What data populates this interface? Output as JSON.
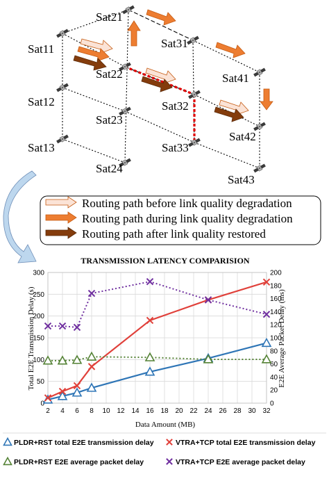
{
  "diagram": {
    "satellites": [
      {
        "id": "sat11",
        "label": "Sat11"
      },
      {
        "id": "sat12",
        "label": "Sat12"
      },
      {
        "id": "sat13",
        "label": "Sat13"
      },
      {
        "id": "sat21",
        "label": "Sat21"
      },
      {
        "id": "sat22",
        "label": "Sat22"
      },
      {
        "id": "sat23",
        "label": "Sat23"
      },
      {
        "id": "sat24",
        "label": "Sat24"
      },
      {
        "id": "sat31",
        "label": "Sat31"
      },
      {
        "id": "sat32",
        "label": "Sat32"
      },
      {
        "id": "sat33",
        "label": "Sat33"
      },
      {
        "id": "sat41",
        "label": "Sat41"
      },
      {
        "id": "sat42",
        "label": "Sat42"
      },
      {
        "id": "sat43",
        "label": "Sat43"
      }
    ],
    "legend": [
      {
        "label": "Routing path before link quality degradation",
        "color": "#fbe3d6"
      },
      {
        "label": "Routing path during link quality degradation",
        "color": "#ed7d31"
      },
      {
        "label": "Routing path after link quality restored",
        "color": "#843c0c"
      }
    ],
    "colors": {
      "degraded_link": "#e00000",
      "grid_line": "#000000"
    }
  },
  "chart_data": {
    "type": "line",
    "title": "TRANSMISSION LATENCY COMPARISION",
    "xlabel": "Data Amount (MB)",
    "ylabel": "Total E2E Transmission Delay (s)",
    "y2label": "E2E Average Packet Delay (ms)",
    "x_ticks": [
      2,
      4,
      6,
      8,
      10,
      12,
      14,
      16,
      18,
      20,
      22,
      24,
      26,
      28,
      30,
      32
    ],
    "ylim": [
      0,
      300
    ],
    "y_ticks": [
      0,
      50,
      100,
      150,
      200,
      250,
      300
    ],
    "y2lim": [
      0,
      200
    ],
    "y2_ticks": [
      0,
      20,
      40,
      60,
      80,
      100,
      120,
      140,
      160,
      180,
      200
    ],
    "grid": true,
    "legend_position": "bottom",
    "series": [
      {
        "name": "PLDR+RST total E2E transmission delay",
        "axis": "left",
        "color": "#2e75b6",
        "style": "solid",
        "marker": "triangle-open",
        "x": [
          2,
          4,
          6,
          8,
          16,
          24,
          32
        ],
        "values": [
          8,
          16,
          24,
          35,
          72,
          103,
          138
        ]
      },
      {
        "name": "VTRA+TCP total E2E transmission delay",
        "axis": "left",
        "color": "#e0403a",
        "style": "solid",
        "marker": "x",
        "x": [
          2,
          4,
          6,
          8,
          16,
          24,
          32
        ],
        "values": [
          12,
          27,
          40,
          84,
          190,
          237,
          278
        ]
      },
      {
        "name": "PLDR+RST E2E average packet delay",
        "axis": "right",
        "color": "#548235",
        "style": "dotted",
        "marker": "triangle-open",
        "x": [
          2,
          4,
          6,
          8,
          16,
          24,
          32
        ],
        "values": [
          65,
          65,
          66,
          71,
          70,
          67,
          67
        ]
      },
      {
        "name": "VTRA+TCP E2E average packet delay",
        "axis": "right",
        "color": "#7030a0",
        "style": "dotted",
        "marker": "x",
        "x": [
          2,
          4,
          6,
          8,
          16,
          24,
          32
        ],
        "values": [
          118,
          118,
          116,
          168,
          186,
          158,
          136
        ]
      }
    ]
  }
}
